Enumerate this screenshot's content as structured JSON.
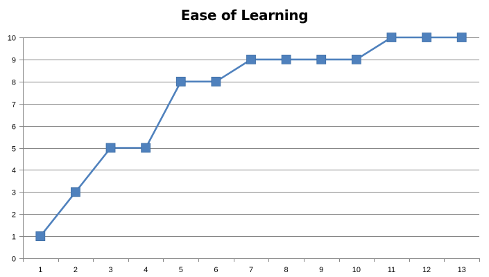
{
  "chart_data": {
    "type": "line",
    "title": "Ease of Learning",
    "xlabel": "",
    "ylabel": "",
    "x": [
      1,
      2,
      3,
      4,
      5,
      6,
      7,
      8,
      9,
      10,
      11,
      12,
      13
    ],
    "categories": [
      "1",
      "2",
      "3",
      "4",
      "5",
      "6",
      "7",
      "8",
      "9",
      "10",
      "11",
      "12",
      "13"
    ],
    "series": [
      {
        "values": [
          1,
          3,
          5,
          5,
          8,
          8,
          9,
          9,
          9,
          9,
          10,
          10,
          10
        ]
      }
    ],
    "ylim": [
      0,
      10
    ],
    "yticks": [
      "0",
      "1",
      "2",
      "3",
      "4",
      "5",
      "6",
      "7",
      "8",
      "9",
      "10"
    ],
    "grid": true,
    "legend": "none",
    "marker": "square",
    "colors": {
      "series": "#4f81bd",
      "grid": "#868686",
      "axis": "#868686"
    }
  }
}
